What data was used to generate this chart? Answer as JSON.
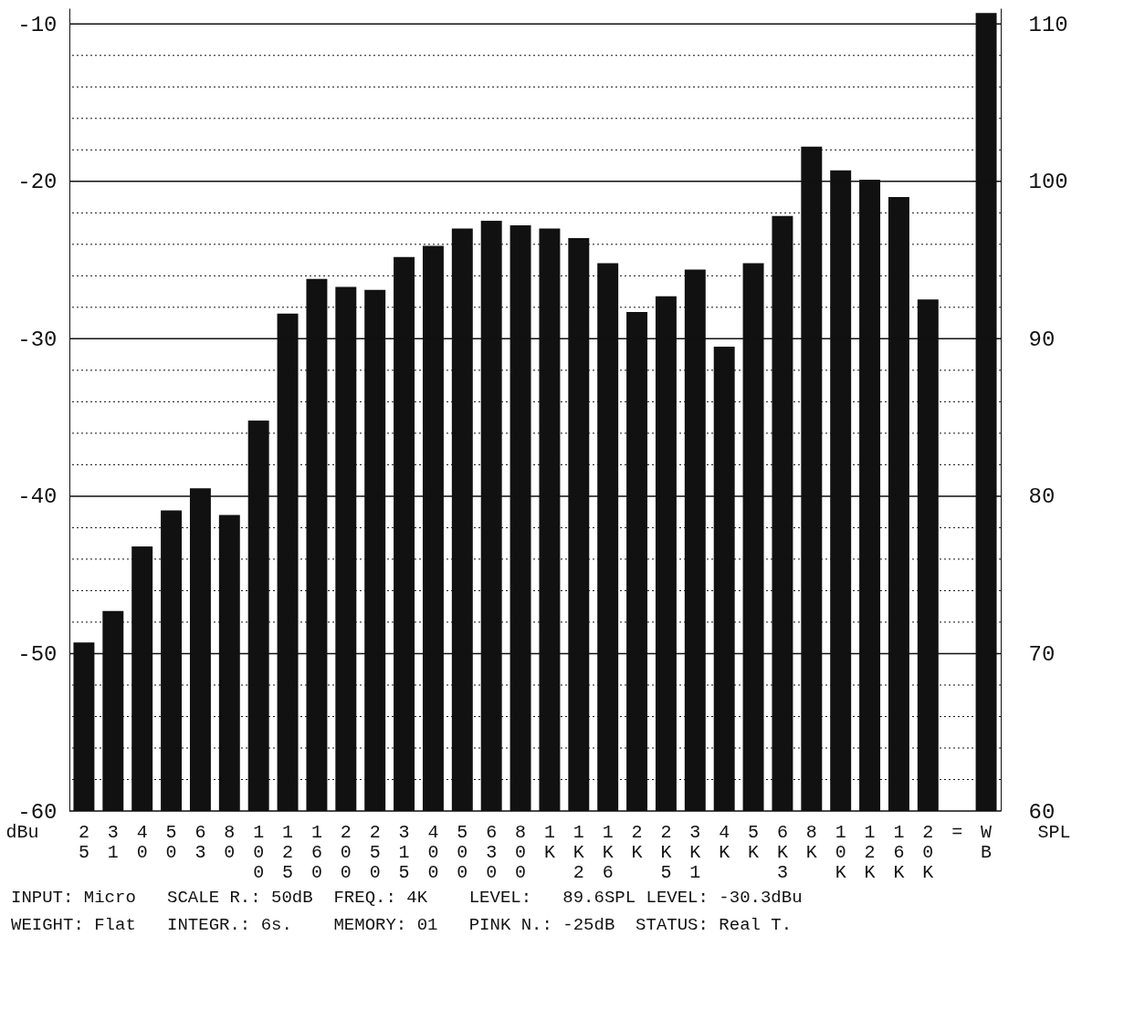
{
  "chart_data": {
    "type": "bar",
    "categories": [
      "25",
      "31",
      "40",
      "50",
      "63",
      "80",
      "100",
      "125",
      "160",
      "200",
      "250",
      "315",
      "400",
      "500",
      "630",
      "800",
      "1K",
      "1K2",
      "1K6",
      "2K",
      "2K5",
      "3K1",
      "4K",
      "5K",
      "6K3",
      "8K",
      "10K",
      "12K",
      "16K",
      "20K",
      "=",
      "WB"
    ],
    "values": [
      10.7,
      12.7,
      16.8,
      19.1,
      20.5,
      18.8,
      24.8,
      31.6,
      33.8,
      33.3,
      33.1,
      35.2,
      35.9,
      37.0,
      37.5,
      37.2,
      37.0,
      36.4,
      34.8,
      31.7,
      32.7,
      34.4,
      29.5,
      34.8,
      37.8,
      42.2,
      40.7,
      40.1,
      39.0,
      32.5,
      null,
      50.7
    ],
    "base": [
      -60,
      -60,
      -60,
      -60,
      -60,
      -60,
      -60,
      -60,
      -60,
      -60,
      -60,
      -60,
      -60,
      -60,
      -60,
      -60,
      -60,
      -60,
      -60,
      -60,
      -60,
      -60,
      -60,
      -60,
      -60,
      -60,
      -60,
      -60,
      -60,
      -60,
      null,
      -60
    ],
    "color": "#111111",
    "ylabel": "dBu",
    "y2label": "SPL",
    "ylim": [
      -60,
      -9
    ],
    "yticks": [
      -60,
      {
        "value": -58,
        "label": null
      },
      {
        "value": -56,
        "label": null
      },
      {
        "value": -54,
        "label": null
      },
      {
        "value": -52,
        "label": null
      },
      -50,
      {
        "value": -48,
        "label": null
      },
      {
        "value": -46,
        "label": null
      },
      {
        "value": -44,
        "label": null
      },
      {
        "value": -42,
        "label": null
      },
      -40,
      {
        "value": -38,
        "label": null
      },
      {
        "value": -36,
        "label": null
      },
      {
        "value": -34,
        "label": null
      },
      {
        "value": -32,
        "label": null
      },
      -30,
      {
        "value": -28,
        "label": null
      },
      {
        "value": -26,
        "label": null
      },
      {
        "value": -24,
        "label": null
      },
      {
        "value": -22,
        "label": null
      },
      -20,
      {
        "value": -18,
        "label": null
      },
      {
        "value": -16,
        "label": null
      },
      {
        "value": -14,
        "label": null
      },
      {
        "value": -12,
        "label": null
      },
      -10
    ],
    "y2lim": [
      60,
      111
    ],
    "y2ticks": [
      60,
      70,
      80,
      90,
      100,
      110
    ],
    "grid": "y",
    "annotations": [
      "INPUT: Micro   SCALE R.: 50dB  FREQ.: 4K    LEVEL:   89.6SPL LEVEL: -30.3dBu",
      "WEIGHT: Flat   INTEGR.: 6s.    MEMORY: 01   PINK N.: -25dB  STATUS: Real T."
    ]
  }
}
